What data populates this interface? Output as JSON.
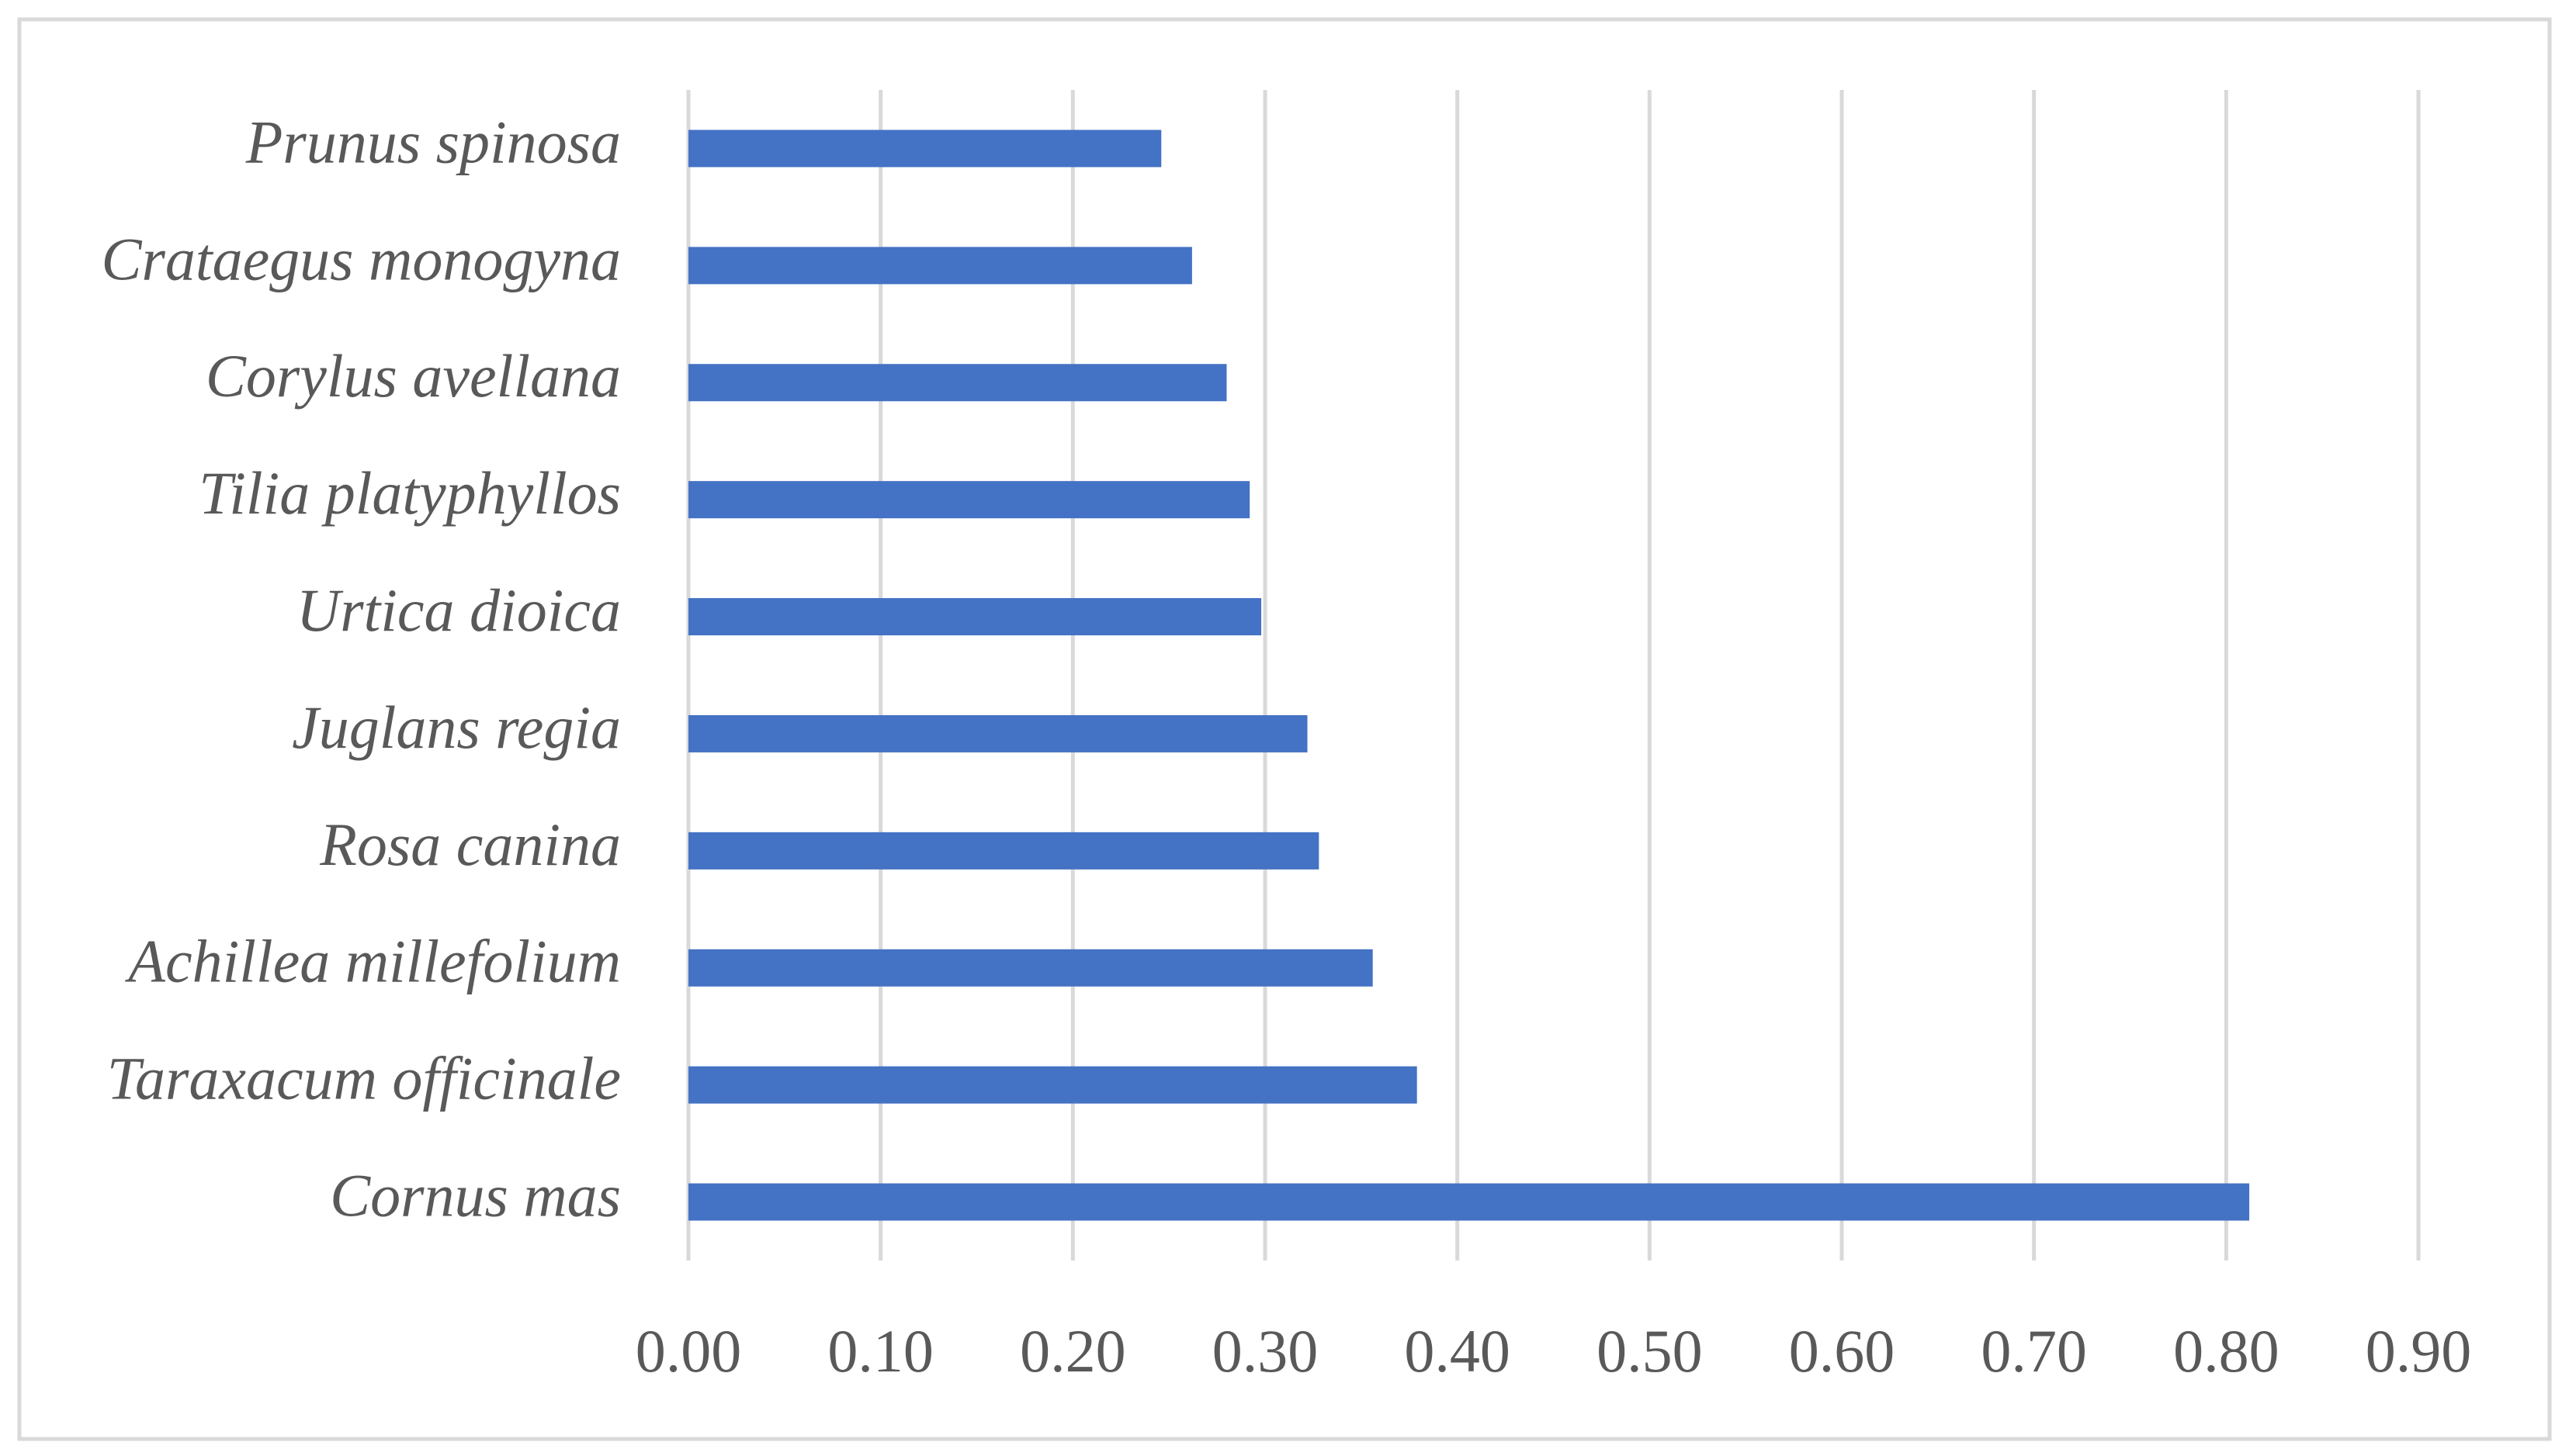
{
  "chart_data": {
    "type": "bar",
    "orientation": "horizontal",
    "categories": [
      "Prunus spinosa",
      "Crataegus monogyna",
      "Corylus avellana",
      "Tilia platyphyllos",
      "Urtica dioica",
      "Juglans regia",
      "Rosa canina",
      "Achillea millefolium",
      "Taraxacum officinale",
      "Cornus mas"
    ],
    "values": [
      0.246,
      0.262,
      0.28,
      0.292,
      0.298,
      0.322,
      0.328,
      0.356,
      0.379,
      0.812
    ],
    "color": "#4472c4",
    "xlim": [
      0,
      0.9
    ],
    "xticks": [
      {
        "value": 0,
        "label": "0.00"
      },
      {
        "value": 0.1,
        "label": "0.10"
      },
      {
        "value": 0.2,
        "label": "0.20"
      },
      {
        "value": 0.3,
        "label": "0.30"
      },
      {
        "value": 0.4,
        "label": "0.40"
      },
      {
        "value": 0.5,
        "label": "0.50"
      },
      {
        "value": 0.6,
        "label": "0.60"
      },
      {
        "value": 0.7,
        "label": "0.70"
      },
      {
        "value": 0.8,
        "label": "0.80"
      },
      {
        "value": 0.9,
        "label": "0.90"
      }
    ],
    "grid": true
  }
}
